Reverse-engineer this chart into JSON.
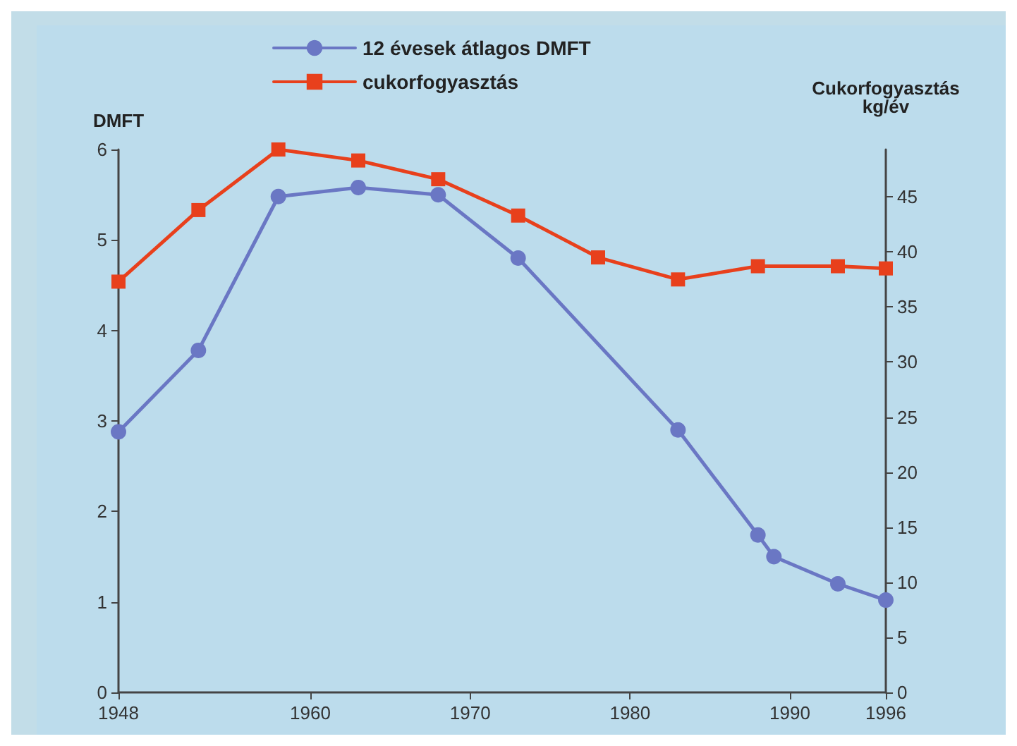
{
  "chart_data": {
    "type": "line",
    "x": [
      1948,
      1953,
      1958,
      1963,
      1968,
      1973,
      1983,
      1988,
      1989,
      1993,
      1996
    ],
    "series": [
      {
        "name": "12 évesek átlagos DMFT",
        "color": "#6a77c4",
        "marker": "circle",
        "values": [
          2.88,
          3.78,
          5.48,
          5.58,
          5.5,
          4.8,
          2.9,
          1.74,
          1.5,
          1.2,
          1.02
        ]
      },
      {
        "name": "cukorfogyasztás",
        "color": "#e8401c",
        "marker": "square",
        "axis": "y2",
        "x": [
          1948,
          1953,
          1958,
          1963,
          1968,
          1973,
          1978,
          1983,
          1988,
          1993,
          1996
        ],
        "values": [
          37.3,
          43.8,
          49.3,
          48.3,
          46.6,
          43.3,
          39.5,
          37.5,
          38.7,
          38.7,
          38.5
        ]
      }
    ],
    "ylabel": "DMFT",
    "y2label": "Cukorfogyasztás\nkg/év",
    "xlim": [
      1948,
      1996
    ],
    "xticks": [
      1948,
      1960,
      1970,
      1980,
      1990,
      1996
    ],
    "ylim": [
      0,
      6
    ],
    "yticks": [
      0,
      1,
      2,
      3,
      4,
      5,
      6
    ],
    "y2lim": [
      0,
      49.3
    ],
    "y2ticks": [
      0,
      5,
      10,
      15,
      20,
      25,
      30,
      35,
      40,
      45
    ],
    "grid": false,
    "legend": "top",
    "line_style": "solid"
  }
}
